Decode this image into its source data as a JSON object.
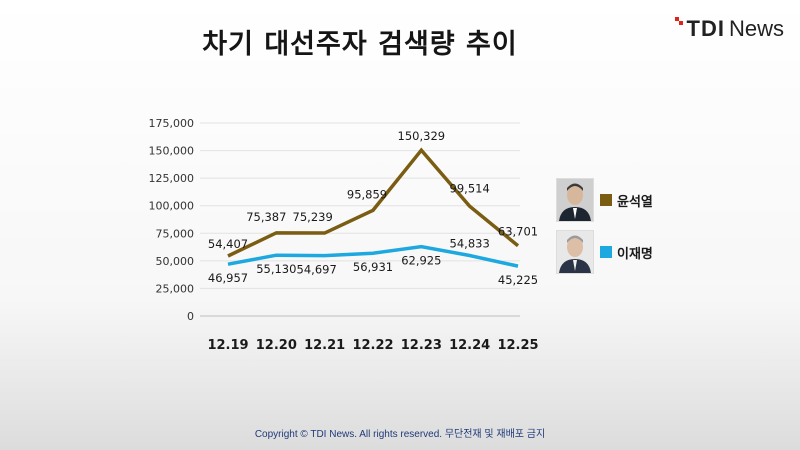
{
  "title": "차기 대선주자 검색량 추이",
  "logo": {
    "tdi": "TDI",
    "news": "News"
  },
  "footer": "Copyright © TDI News. All rights reserved. 무단전재 및 재배포 금지",
  "colors": {
    "yoon": "#7a5c12",
    "lee": "#1ea8e0",
    "accent": "#e2231a"
  },
  "legend": [
    {
      "name": "윤석열",
      "photo_icon": "candidate-photo-icon"
    },
    {
      "name": "이재명",
      "photo_icon": "candidate-photo-icon"
    }
  ],
  "chart_data": {
    "type": "line",
    "categories": [
      "12.19",
      "12.20",
      "12.21",
      "12.22",
      "12.23",
      "12.24",
      "12.25"
    ],
    "ylim": [
      0,
      175000
    ],
    "yticks": [
      "0",
      "25,000",
      "50,000",
      "75,000",
      "100,000",
      "125,000",
      "150,000",
      "175,000"
    ],
    "grid": true,
    "legend_position": "right",
    "series": [
      {
        "name": "윤석열",
        "values": [
          54407,
          75387,
          75239,
          95859,
          150329,
          99514,
          63701
        ],
        "labels": [
          "54,407",
          "75,387",
          "75,239",
          "95,859",
          "150,329",
          "99,514",
          "63,701"
        ]
      },
      {
        "name": "이재명",
        "values": [
          46957,
          55130,
          54697,
          56931,
          62925,
          54833,
          45225
        ],
        "labels": [
          "46,957",
          "55,130",
          "54,697",
          "56,931",
          "62,925",
          "54,833",
          "45,225"
        ]
      }
    ]
  }
}
